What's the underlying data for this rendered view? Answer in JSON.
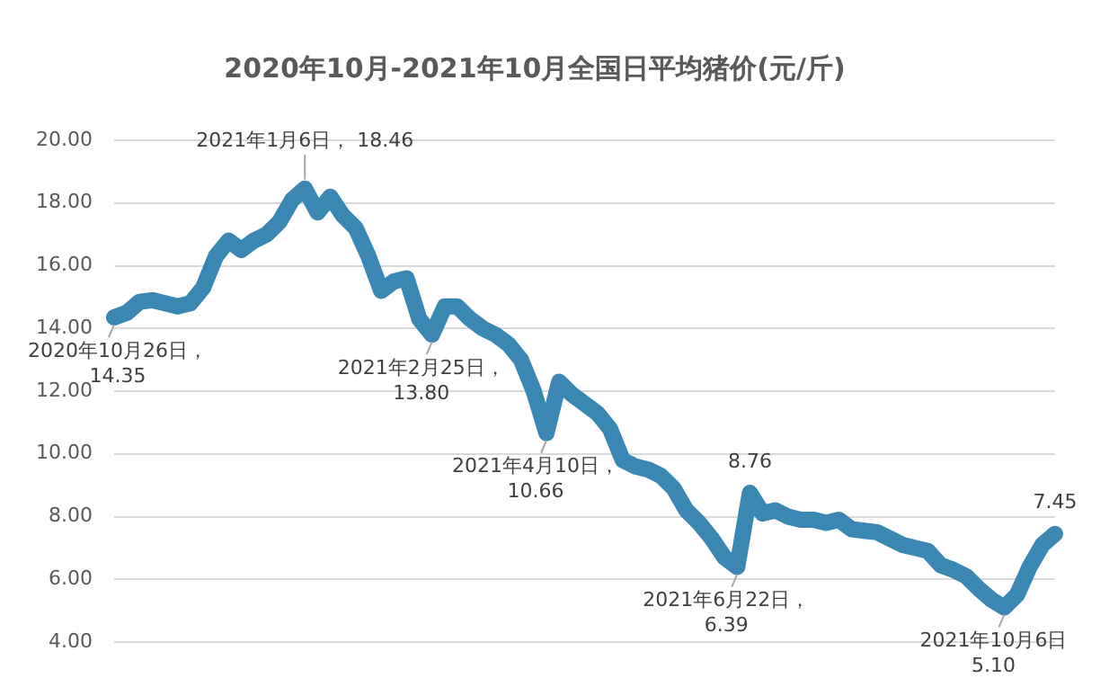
{
  "chart_data": {
    "type": "line",
    "title": "2020年10月-2021年10月全国日平均猪价(元/斤)",
    "categories": [
      null,
      null,
      null,
      null,
      null,
      null,
      null,
      null,
      null,
      null,
      null,
      null,
      null,
      null,
      null,
      null,
      null,
      null,
      null,
      null,
      null,
      null,
      null,
      null,
      null,
      null,
      null,
      null,
      null,
      null,
      null,
      null,
      null,
      null,
      null,
      null,
      null,
      null,
      null,
      null,
      null,
      null,
      null,
      null,
      null,
      null,
      null,
      null,
      null,
      null,
      null,
      null,
      null,
      null,
      null,
      null,
      null,
      null,
      null,
      null,
      null,
      null,
      null,
      null,
      null,
      null,
      null,
      null,
      null,
      null,
      null,
      null,
      null,
      null,
      null
    ],
    "series": [
      {
        "color": "#3a87b3",
        "values": [
          14.35,
          14.5,
          14.85,
          14.9,
          14.8,
          14.7,
          14.8,
          15.3,
          16.3,
          16.8,
          16.5,
          16.8,
          17.0,
          17.4,
          18.1,
          18.46,
          17.7,
          18.2,
          17.6,
          17.2,
          16.3,
          15.2,
          15.5,
          15.6,
          14.3,
          13.8,
          14.7,
          14.7,
          14.3,
          14.0,
          13.8,
          13.5,
          13.0,
          12.0,
          10.66,
          12.3,
          11.9,
          11.6,
          11.3,
          10.8,
          9.8,
          9.6,
          9.5,
          9.3,
          8.9,
          8.2,
          7.8,
          7.3,
          6.7,
          6.39,
          8.76,
          8.1,
          8.2,
          8.0,
          7.9,
          7.9,
          7.8,
          7.9,
          7.6,
          7.55,
          7.5,
          7.3,
          7.1,
          7.0,
          6.9,
          6.45,
          6.3,
          6.1,
          5.7,
          5.35,
          5.1,
          5.5,
          6.4,
          7.1,
          7.45
        ]
      }
    ],
    "ylim": [
      4,
      20
    ],
    "yticks": [
      {
        "value": 4,
        "label": "4.00"
      },
      {
        "value": 6,
        "label": "6.00"
      },
      {
        "value": 8,
        "label": "8.00"
      },
      {
        "value": 10,
        "label": "10.00"
      },
      {
        "value": 12,
        "label": "12.00"
      },
      {
        "value": 14,
        "label": "14.00"
      },
      {
        "value": 16,
        "label": "16.00"
      },
      {
        "value": 18,
        "label": "18.00"
      },
      {
        "value": 20,
        "label": "20.00"
      }
    ],
    "grid": "y",
    "tick_labels": "y",
    "legend": false,
    "annotations": [
      {
        "text": "2020年10月26日，\n14.35",
        "y": 14.35
      },
      {
        "text": "2021年1月6日， 18.46",
        "y": 18.46
      },
      {
        "text": "2021年2月25日，\n13.80",
        "y": 13.8
      },
      {
        "text": "2021年4月10日，\n10.66",
        "y": 10.66
      },
      {
        "text": "2021年6月22日，\n6.39",
        "y": 6.39
      },
      {
        "text": "8.76",
        "y": 8.76
      },
      {
        "text": "2021年10月6日\n5.10",
        "y": 5.1
      },
      {
        "text": "7.45",
        "y": 7.45
      }
    ]
  }
}
